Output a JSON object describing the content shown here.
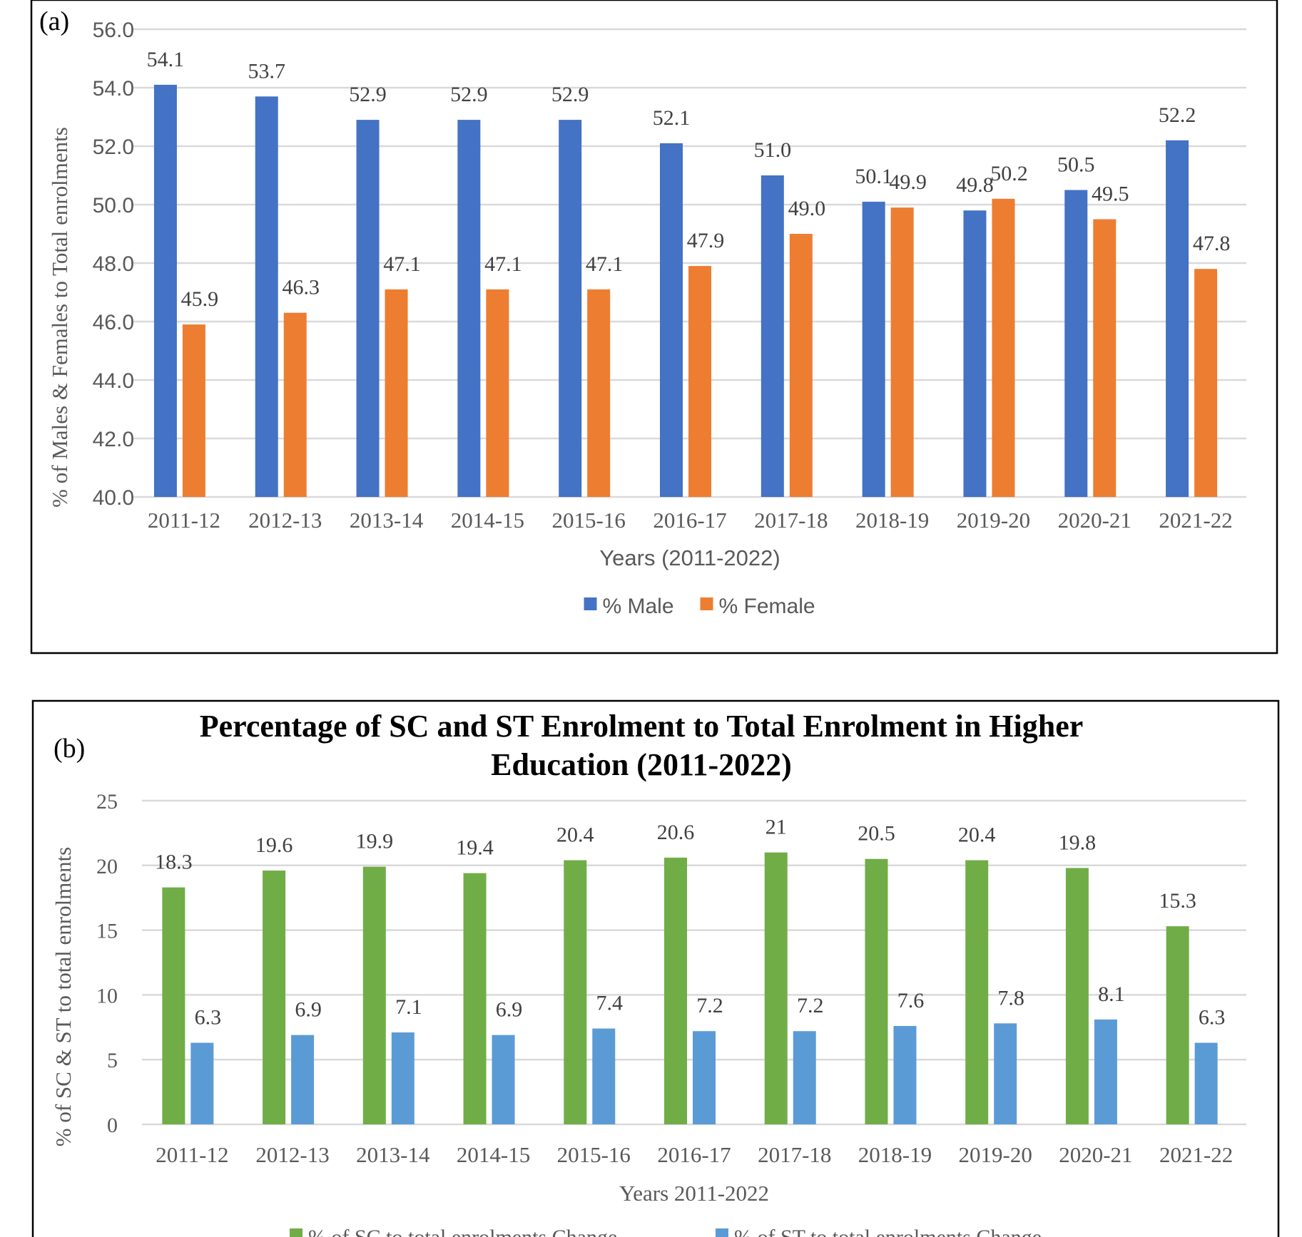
{
  "chart_data": [
    {
      "type": "bar",
      "panel_label": "(a)",
      "title": "",
      "xlabel": "Years (2011-2022)",
      "ylabel": "% of Males & Females to Total enrolments",
      "ylim": [
        40,
        56
      ],
      "yticks": [
        "40.0",
        "42.0",
        "44.0",
        "46.0",
        "48.0",
        "50.0",
        "52.0",
        "54.0",
        "56.0"
      ],
      "grid": true,
      "legend": "bottom",
      "categories": [
        "2011-12",
        "2012-13",
        "2013-14",
        "2014-15",
        "2015-16",
        "2016-17",
        "2017-18",
        "2018-19",
        "2019-20",
        "2020-21",
        "2021-22"
      ],
      "series": [
        {
          "name": "% Male",
          "color": "#4472C4",
          "values": [
            54.1,
            53.7,
            52.9,
            52.9,
            52.9,
            52.1,
            51.0,
            50.1,
            49.8,
            50.5,
            52.2
          ],
          "labels": [
            "54.1",
            "53.7",
            "52.9",
            "52.9",
            "52.9",
            "52.1",
            "51.0",
            "50.1",
            "49.8",
            "50.5",
            "52.2"
          ]
        },
        {
          "name": "% Female",
          "color": "#ED7D31",
          "values": [
            45.9,
            46.3,
            47.1,
            47.1,
            47.1,
            47.9,
            49.0,
            49.9,
            50.2,
            49.5,
            47.8
          ],
          "labels": [
            "45.9",
            "46.3",
            "47.1",
            "47.1",
            "47.1",
            "47.9",
            "49.0",
            "49.9",
            "50.2",
            "49.5",
            "47.8"
          ]
        }
      ]
    },
    {
      "type": "bar",
      "panel_label": "(b)",
      "title": [
        "Percentage of SC and ST Enrolment to Total Enrolment in Higher",
        "Education (2011-2022)"
      ],
      "xlabel": "Years 2011-2022",
      "ylabel": "% of SC & ST to total enrolments",
      "ylim": [
        0,
        25
      ],
      "yticks": [
        "0",
        "5",
        "10",
        "15",
        "20",
        "25"
      ],
      "grid": true,
      "legend": "bottom",
      "categories": [
        "2011-12",
        "2012-13",
        "2013-14",
        "2014-15",
        "2015-16",
        "2016-17",
        "2017-18",
        "2018-19",
        "2019-20",
        "2020-21",
        "2021-22"
      ],
      "series": [
        {
          "name": "% of SC to total enrolments Change",
          "color": "#70AD47",
          "values": [
            18.3,
            19.6,
            19.9,
            19.4,
            20.4,
            20.6,
            21,
            20.5,
            20.4,
            19.8,
            15.3
          ],
          "labels": [
            "18.3",
            "19.6",
            "19.9",
            "19.4",
            "20.4",
            "20.6",
            "21",
            "20.5",
            "20.4",
            "19.8",
            "15.3"
          ]
        },
        {
          "name": "% of ST to total enrolments Change",
          "color": "#5B9BD5",
          "values": [
            6.3,
            6.9,
            7.1,
            6.9,
            7.4,
            7.2,
            7.2,
            7.6,
            7.8,
            8.1,
            6.3
          ],
          "labels": [
            "6.3",
            "6.9",
            "7.1",
            "6.9",
            "7.4",
            "7.2",
            "7.2",
            "7.6",
            "7.8",
            "8.1",
            "6.3"
          ]
        }
      ]
    }
  ]
}
